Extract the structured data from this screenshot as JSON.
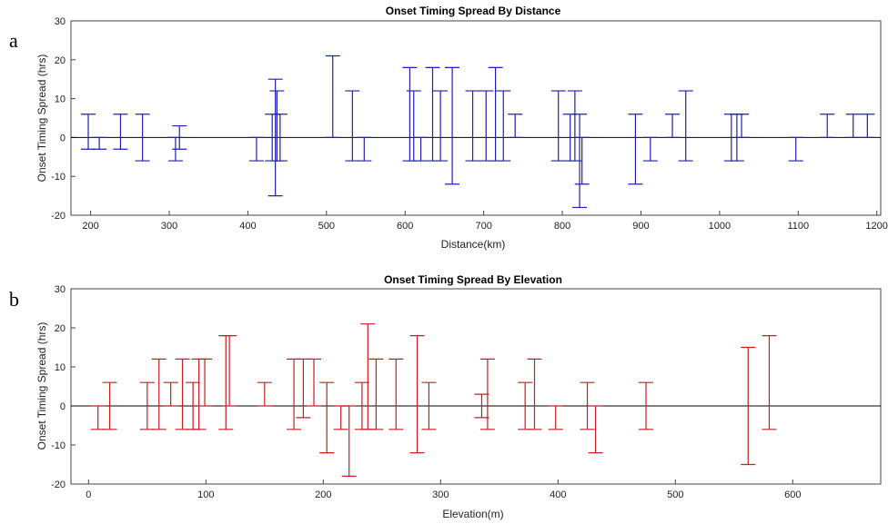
{
  "chart_data": [
    {
      "type": "errorbar",
      "panel_label": "a",
      "title": "Onset Timing Spread By Distance",
      "xlabel": "Distance(km)",
      "ylabel": "Onset Timing Spread (hrs)",
      "xlim": [
        175,
        1205
      ],
      "ylim": [
        -20,
        30
      ],
      "xticks": [
        200,
        300,
        400,
        500,
        600,
        700,
        800,
        900,
        1000,
        1100,
        1200
      ],
      "yticks": [
        -20,
        -10,
        0,
        10,
        20,
        30
      ],
      "color": "#1f1fb4",
      "zero_line": true,
      "bars": [
        {
          "x": 197,
          "low": -3,
          "high": 6
        },
        {
          "x": 211,
          "low": -3,
          "high": 0
        },
        {
          "x": 238,
          "low": -3,
          "high": 6
        },
        {
          "x": 266,
          "low": -6,
          "high": 6
        },
        {
          "x": 308,
          "low": -6,
          "high": 0
        },
        {
          "x": 313,
          "low": -3,
          "high": 3
        },
        {
          "x": 411,
          "low": -6,
          "high": 0
        },
        {
          "x": 431,
          "low": -6,
          "high": 6
        },
        {
          "x": 435,
          "low": -15,
          "high": 15
        },
        {
          "x": 437,
          "low": -6,
          "high": 12
        },
        {
          "x": 441,
          "low": -6,
          "high": 6
        },
        {
          "x": 508,
          "low": 0,
          "high": 21
        },
        {
          "x": 533,
          "low": -6,
          "high": 12
        },
        {
          "x": 548,
          "low": -6,
          "high": 0
        },
        {
          "x": 606,
          "low": -6,
          "high": 18
        },
        {
          "x": 611,
          "low": -6,
          "high": 12
        },
        {
          "x": 620,
          "low": -6,
          "high": 0
        },
        {
          "x": 635,
          "low": -6,
          "high": 18
        },
        {
          "x": 645,
          "low": -6,
          "high": 12
        },
        {
          "x": 660,
          "low": -12,
          "high": 18
        },
        {
          "x": 686,
          "low": -6,
          "high": 12
        },
        {
          "x": 703,
          "low": -6,
          "high": 12
        },
        {
          "x": 715,
          "low": -6,
          "high": 18
        },
        {
          "x": 725,
          "low": -6,
          "high": 12
        },
        {
          "x": 740,
          "low": 0,
          "high": 6
        },
        {
          "x": 795,
          "low": -6,
          "high": 12
        },
        {
          "x": 810,
          "low": -6,
          "high": 6
        },
        {
          "x": 816,
          "low": -6,
          "high": 12
        },
        {
          "x": 822,
          "low": -18,
          "high": 6
        },
        {
          "x": 825,
          "low": -12,
          "high": 0
        },
        {
          "x": 893,
          "low": -12,
          "high": 6
        },
        {
          "x": 912,
          "low": -6,
          "high": 0
        },
        {
          "x": 940,
          "low": 0,
          "high": 6
        },
        {
          "x": 957,
          "low": -6,
          "high": 12
        },
        {
          "x": 1015,
          "low": -6,
          "high": 6
        },
        {
          "x": 1022,
          "low": -6,
          "high": 6
        },
        {
          "x": 1028,
          "low": 0,
          "high": 6
        },
        {
          "x": 1097,
          "low": -6,
          "high": 0
        },
        {
          "x": 1137,
          "low": 0,
          "high": 6
        },
        {
          "x": 1170,
          "low": 0,
          "high": 6
        },
        {
          "x": 1188,
          "low": 0,
          "high": 6
        }
      ]
    },
    {
      "type": "errorbar",
      "panel_label": "b",
      "title": "Onset Timing Spread By Elevation",
      "xlabel": "Elevation(m)",
      "ylabel": "Onset Timing Spread (hrs)",
      "xlim": [
        -15,
        675
      ],
      "ylim": [
        -20,
        30
      ],
      "xticks": [
        0,
        100,
        200,
        300,
        400,
        500,
        600
      ],
      "yticks": [
        -20,
        -10,
        0,
        10,
        20,
        30
      ],
      "color": "#c81e1e",
      "zero_line": true,
      "bars": [
        {
          "x": 8,
          "low": -6,
          "high": 0
        },
        {
          "x": 18,
          "low": -6,
          "high": 6
        },
        {
          "x": 50,
          "low": -6,
          "high": 6
        },
        {
          "x": 60,
          "low": -6,
          "high": 12
        },
        {
          "x": 70,
          "low": 0,
          "high": 6
        },
        {
          "x": 80,
          "low": -6,
          "high": 12
        },
        {
          "x": 89,
          "low": -6,
          "high": 6
        },
        {
          "x": 94,
          "low": -6,
          "high": 12
        },
        {
          "x": 99,
          "low": 0,
          "high": 12
        },
        {
          "x": 117,
          "low": -6,
          "high": 18
        },
        {
          "x": 120,
          "low": 0,
          "high": 18
        },
        {
          "x": 150,
          "low": 0,
          "high": 6
        },
        {
          "x": 175,
          "low": -6,
          "high": 12
        },
        {
          "x": 183,
          "low": -3,
          "high": 12
        },
        {
          "x": 192,
          "low": 0,
          "high": 12
        },
        {
          "x": 203,
          "low": -12,
          "high": 6
        },
        {
          "x": 215,
          "low": -6,
          "high": 0
        },
        {
          "x": 222,
          "low": -18,
          "high": 0
        },
        {
          "x": 233,
          "low": -6,
          "high": 6
        },
        {
          "x": 238,
          "low": -6,
          "high": 21
        },
        {
          "x": 245,
          "low": -6,
          "high": 12
        },
        {
          "x": 262,
          "low": -6,
          "high": 12
        },
        {
          "x": 280,
          "low": -12,
          "high": 18
        },
        {
          "x": 290,
          "low": -6,
          "high": 6
        },
        {
          "x": 335,
          "low": -3,
          "high": 3
        },
        {
          "x": 340,
          "low": -6,
          "high": 12
        },
        {
          "x": 372,
          "low": -6,
          "high": 6
        },
        {
          "x": 380,
          "low": -6,
          "high": 12
        },
        {
          "x": 398,
          "low": -6,
          "high": 0
        },
        {
          "x": 425,
          "low": -6,
          "high": 6
        },
        {
          "x": 432,
          "low": -12,
          "high": 0
        },
        {
          "x": 475,
          "low": -6,
          "high": 6
        },
        {
          "x": 562,
          "low": -15,
          "high": 15
        },
        {
          "x": 580,
          "low": -6,
          "high": 18
        }
      ]
    }
  ]
}
